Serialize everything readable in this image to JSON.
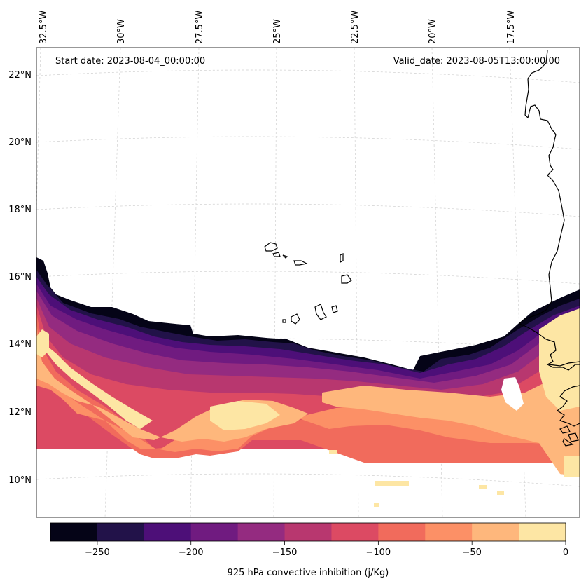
{
  "annotations": {
    "start_date": "Start date: 2023-08-04_00:00:00",
    "valid_date": "Valid_date: 2023-08-05T13:00:00.00"
  },
  "lon_labels": [
    "32.5°W",
    "30°W",
    "27.5°W",
    "25°W",
    "22.5°W",
    "20°W",
    "17.5°W"
  ],
  "lat_labels": [
    "22°N",
    "20°N",
    "18°N",
    "16°N",
    "14°N",
    "12°N",
    "10°N"
  ],
  "colorbar": {
    "label": "925 hPa convective inhibition (j/Kg)",
    "tick_labels": [
      "−250",
      "−200",
      "−150",
      "−100",
      "−50",
      "0"
    ],
    "levels": [
      -275,
      -250,
      -225,
      -200,
      -175,
      -150,
      -125,
      -100,
      -75,
      -50,
      -25,
      0
    ],
    "colors": [
      "#050417",
      "#221249",
      "#4d0f78",
      "#701b80",
      "#942b80",
      "#b8376f",
      "#dc4a63",
      "#f16b5c",
      "#fc9066",
      "#feb77c",
      "#fde6a4"
    ]
  },
  "colors": {
    "coastline": "#000000",
    "gridline": "#d0d0d0",
    "frame": "#000000"
  }
}
